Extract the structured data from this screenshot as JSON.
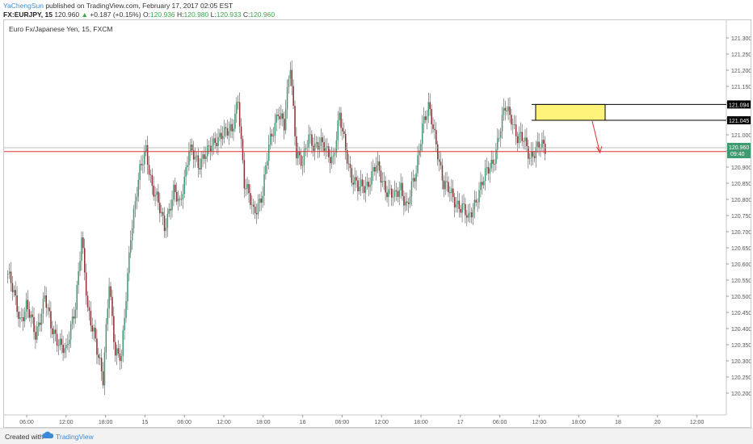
{
  "header": {
    "author": "YaChengSun",
    "published_text": "published on TradingView.com, February 17, 2017 02:05 EST",
    "symbol": "FX:EURJPY, 15",
    "last": "120.960",
    "change": "+0.187 (+0.15%)",
    "o_label": "O:",
    "o_value": "120.936",
    "h_label": "H:",
    "h_value": "120.980",
    "l_label": "L:",
    "l_value": "120.933",
    "c_label": "C:",
    "c_value": "120.960",
    "up_color": "#3aa64a"
  },
  "chart_data": {
    "type": "candlestick",
    "title": "Euro Fx/Japanese Yen, 15, FXCM",
    "ylim": [
      120.17,
      121.325
    ],
    "y_ticks": [
      "121.300",
      "121.250",
      "121.200",
      "121.150",
      "121.100",
      "121.050",
      "121.000",
      "120.950",
      "120.900",
      "120.850",
      "120.800",
      "120.750",
      "120.700",
      "120.650",
      "120.600",
      "120.550",
      "120.500",
      "120.450",
      "120.400",
      "120.350",
      "120.300",
      "120.250",
      "120.200"
    ],
    "x_ticks": [
      "06:00",
      "12:00",
      "18:00",
      "15",
      "06:00",
      "12:00",
      "18:00",
      "16",
      "06:00",
      "12:00",
      "18:00",
      "17",
      "06:00",
      "12:00",
      "18:00",
      "18",
      "20",
      "12:00"
    ],
    "bull_color": "#3d9b6f",
    "bear_color": "#8b2e2e",
    "price_anchors": [
      [
        0,
        120.57
      ],
      [
        8,
        120.43
      ],
      [
        12,
        120.47
      ],
      [
        18,
        120.38
      ],
      [
        24,
        120.5
      ],
      [
        28,
        120.4
      ],
      [
        34,
        120.36
      ],
      [
        38,
        120.32
      ],
      [
        44,
        120.48
      ],
      [
        48,
        120.68
      ],
      [
        52,
        120.45
      ],
      [
        56,
        120.4
      ],
      [
        62,
        120.23
      ],
      [
        66,
        120.55
      ],
      [
        70,
        120.33
      ],
      [
        74,
        120.3
      ],
      [
        80,
        120.7
      ],
      [
        86,
        120.88
      ],
      [
        90,
        120.96
      ],
      [
        94,
        120.84
      ],
      [
        98,
        120.78
      ],
      [
        102,
        120.72
      ],
      [
        108,
        120.82
      ],
      [
        112,
        120.78
      ],
      [
        118,
        120.96
      ],
      [
        124,
        120.9
      ],
      [
        128,
        120.95
      ],
      [
        134,
        120.96
      ],
      [
        140,
        121.02
      ],
      [
        146,
        121.0
      ],
      [
        150,
        121.12
      ],
      [
        154,
        120.85
      ],
      [
        160,
        120.76
      ],
      [
        166,
        120.82
      ],
      [
        170,
        120.96
      ],
      [
        176,
        121.08
      ],
      [
        180,
        121.02
      ],
      [
        184,
        121.22
      ],
      [
        188,
        120.95
      ],
      [
        192,
        120.9
      ],
      [
        196,
        121.0
      ],
      [
        200,
        120.97
      ],
      [
        206,
        120.96
      ],
      [
        212,
        120.93
      ],
      [
        216,
        121.05
      ],
      [
        220,
        120.96
      ],
      [
        224,
        120.87
      ],
      [
        228,
        120.83
      ],
      [
        234,
        120.85
      ],
      [
        240,
        120.9
      ],
      [
        246,
        120.84
      ],
      [
        252,
        120.8
      ],
      [
        256,
        120.84
      ],
      [
        260,
        120.78
      ],
      [
        266,
        120.88
      ],
      [
        270,
        121.04
      ],
      [
        274,
        121.08
      ],
      [
        280,
        120.95
      ],
      [
        284,
        120.85
      ],
      [
        290,
        120.8
      ],
      [
        296,
        120.78
      ],
      [
        300,
        120.73
      ],
      [
        306,
        120.82
      ],
      [
        310,
        120.86
      ],
      [
        316,
        120.92
      ],
      [
        320,
        121.0
      ],
      [
        324,
        121.08
      ],
      [
        328,
        121.06
      ],
      [
        332,
        120.99
      ],
      [
        336,
        120.98
      ],
      [
        340,
        120.94
      ],
      [
        346,
        120.96
      ],
      [
        350,
        120.96
      ]
    ],
    "horizontal_lines": [
      {
        "label": "121.094",
        "value": 121.094,
        "color": "#000000"
      },
      {
        "label": "121.045",
        "value": 121.045,
        "color": "#000000"
      },
      {
        "label": "120.948",
        "value": 120.948,
        "color": "#e03030"
      }
    ],
    "current_price": {
      "label": "120.960",
      "value": 120.96,
      "countdown": "09:40",
      "color": "#3d9b6f"
    },
    "zone": {
      "top": 121.094,
      "bottom": 121.045,
      "fill": "#fff37a",
      "stroke": "#000000"
    },
    "arrow_color": "#e03030"
  },
  "footer": {
    "created_with": "Created with",
    "brand": "TradingView"
  }
}
